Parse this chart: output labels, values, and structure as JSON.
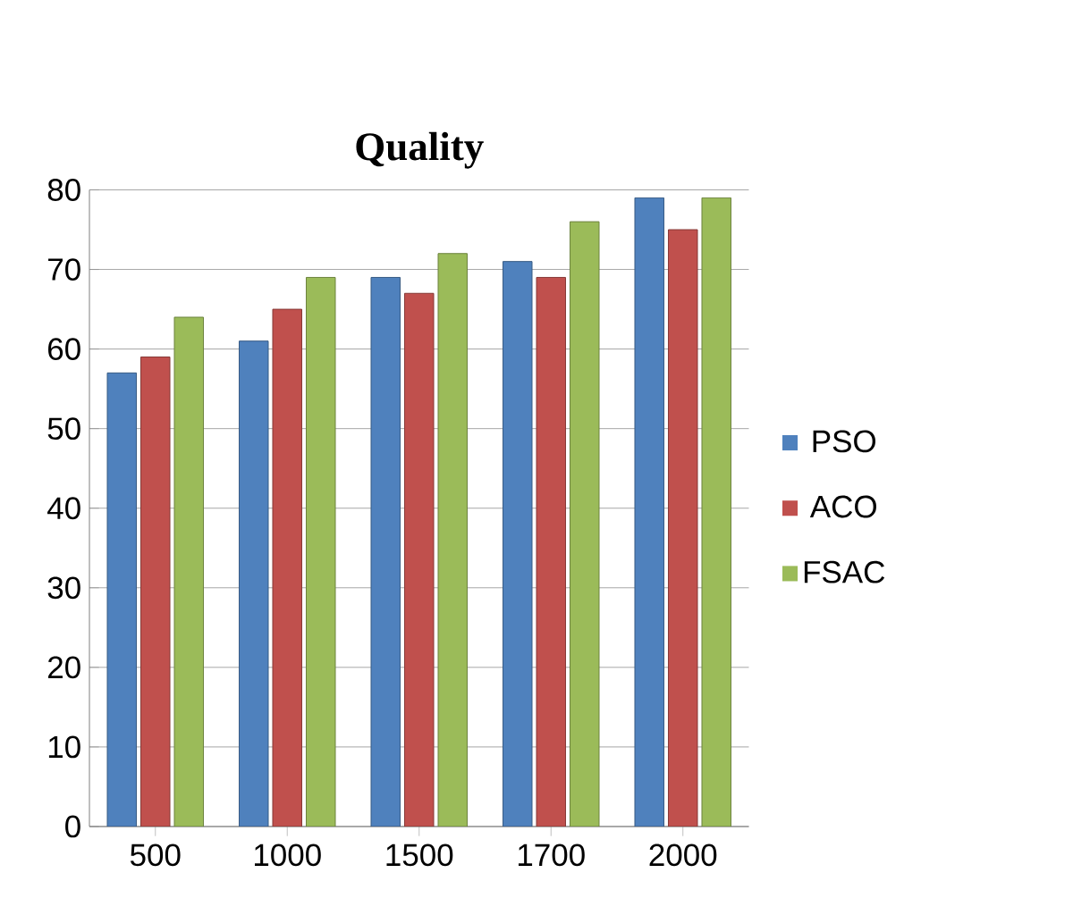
{
  "chart_data": {
    "type": "bar",
    "title": "Quality",
    "categories": [
      "500",
      "1000",
      "1500",
      "1700",
      "2000"
    ],
    "series": [
      {
        "name": "PSO",
        "color": "#4f81bd",
        "values": [
          57,
          61,
          69,
          71,
          79
        ]
      },
      {
        "name": "ACO",
        "color": "#c0504d",
        "values": [
          59,
          65,
          67,
          69,
          75
        ]
      },
      {
        "name": "FSAC",
        "color": "#9bbb59",
        "values": [
          64,
          69,
          72,
          76,
          79
        ]
      }
    ],
    "ylim": [
      0,
      80
    ],
    "yticks": [
      0,
      10,
      20,
      30,
      40,
      50,
      60,
      70,
      80
    ],
    "grid": "y",
    "legend": "right"
  }
}
